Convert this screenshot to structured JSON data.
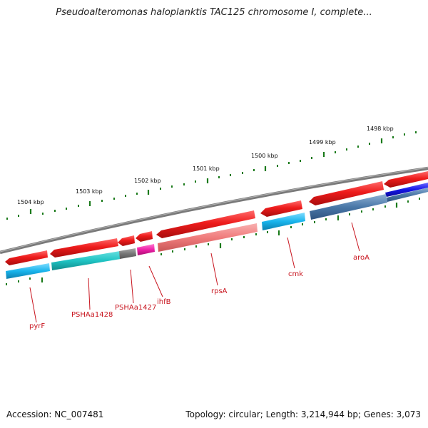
{
  "title": "Pseudoalteromonas haloplanktis TAC125 chromosome I, complete...",
  "footer": {
    "accession": "Accession: NC_007481",
    "stats": "Topology: circular; Length: 3,214,944 bp; Genes: 3,073"
  },
  "ticks": [
    "1504 kbp",
    "1503 kbp",
    "1502 kbp",
    "1501 kbp",
    "1500 kbp",
    "1499 kbp",
    "1498 kbp"
  ],
  "genes": [
    "pyrF",
    "PSHAa1428",
    "PSHAa1427",
    "ihfB",
    "rpsA",
    "cmk",
    "aroA"
  ],
  "colors": {
    "backbone": "#7a7a7a",
    "tick": "#1a7a1a",
    "cds": "#ee1c1c",
    "cyan": "#19b4ec",
    "teal": "#1fc3c3",
    "gray": "#777777",
    "magenta": "#ee1fa8",
    "pink": "#f07c7c",
    "steel": "#4a78a8",
    "blue": "#1414e6",
    "label": "#c8141e"
  }
}
